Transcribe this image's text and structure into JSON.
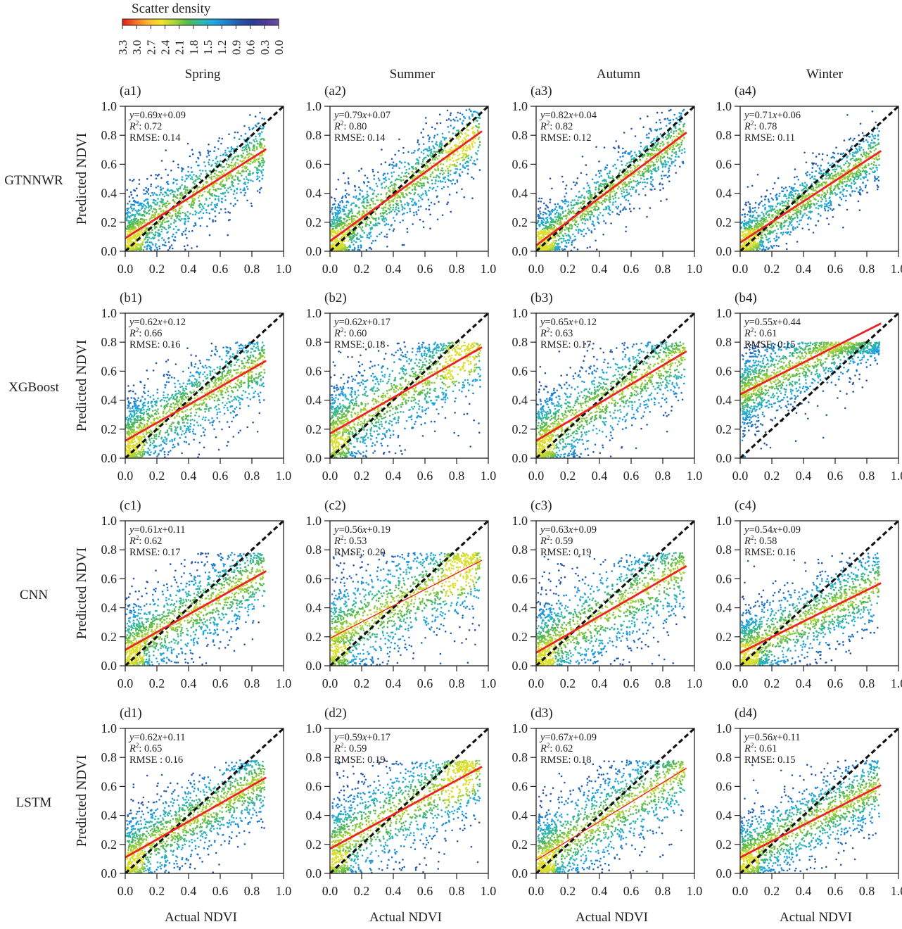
{
  "colorbar": {
    "title": "Scatter density",
    "colors": [
      "#e31a1c",
      "#f46d2a",
      "#fdbb2d",
      "#f2e32b",
      "#a8d43a",
      "#55b848",
      "#2fb7a5",
      "#21a6e0",
      "#1d7fcc",
      "#2456a8",
      "#2a3c94",
      "#4b3a96",
      "#6a4fa5"
    ],
    "tick_labels": [
      "3.3",
      "3.0",
      "2.7",
      "2.4",
      "2.1",
      "1.8",
      "1.5",
      "1.2",
      "0.9",
      "0.6",
      "0.3",
      "0.0"
    ]
  },
  "columns": [
    "Spring",
    "Summer",
    "Autumn",
    "Winter"
  ],
  "rows": [
    "GTNNWR",
    "XGBoost",
    "CNN",
    "LSTM"
  ],
  "colors": {
    "fit_line": "#e8232a",
    "identity_line": "#111111",
    "axis": "#231f20"
  },
  "chart_data": {
    "type": "scatter",
    "title": "",
    "xlabel": "Actual NDVI",
    "ylabel": "Predicted NDVI",
    "xlim": [
      0.0,
      1.0
    ],
    "ylim": [
      0.0,
      1.0
    ],
    "x_ticks": [
      "0.0",
      "0.2",
      "0.4",
      "0.6",
      "0.8",
      "1.0"
    ],
    "y_ticks": [
      "0.0",
      "0.2",
      "0.4",
      "0.6",
      "0.8",
      "1.0"
    ],
    "grid": false,
    "legend": "colorbar top-left (scatter density)",
    "panels": [
      {
        "id": "(a1)",
        "model": "GTNNWR",
        "season": "Spring",
        "equation": "y=0.69x+0.09",
        "slope": 0.69,
        "intercept": 0.09,
        "r2_label": ": 0.72",
        "r2": 0.72,
        "rmse_label": "RMSE: 0.14",
        "rmse": 0.14,
        "x_max": 0.88
      },
      {
        "id": "(a2)",
        "model": "GTNNWR",
        "season": "Summer",
        "equation": "y=0.79x+0.07",
        "slope": 0.79,
        "intercept": 0.07,
        "r2_label": ": 0.80",
        "r2": 0.8,
        "rmse_label": "RMSE: 0.14",
        "rmse": 0.14,
        "x_max": 0.95
      },
      {
        "id": "(a3)",
        "model": "GTNNWR",
        "season": "Autumn",
        "equation": "y=0.82x+0.04",
        "slope": 0.82,
        "intercept": 0.04,
        "r2_label": ": 0.82",
        "r2": 0.82,
        "rmse_label": "RMSE: 0.12",
        "rmse": 0.12,
        "x_max": 0.94
      },
      {
        "id": "(a4)",
        "model": "GTNNWR",
        "season": "Winter",
        "equation": "y=0.71x+0.06",
        "slope": 0.71,
        "intercept": 0.06,
        "r2_label": ": 0.78",
        "r2": 0.78,
        "rmse_label": "RMSE: 0.11",
        "rmse": 0.11,
        "x_max": 0.88
      },
      {
        "id": "(b1)",
        "model": "XGBoost",
        "season": "Spring",
        "equation": "y=0.62x+0.12",
        "slope": 0.62,
        "intercept": 0.12,
        "r2_label": ": 0.66",
        "r2": 0.66,
        "rmse_label": "RMSE: 0.16",
        "rmse": 0.16,
        "x_max": 0.88
      },
      {
        "id": "(b2)",
        "model": "XGBoost",
        "season": "Summer",
        "equation": "y=0.62x+0.17",
        "slope": 0.62,
        "intercept": 0.17,
        "r2_label": ": 0.60",
        "r2": 0.6,
        "rmse_label": "RMSE: 0.18",
        "rmse": 0.18,
        "x_max": 0.95
      },
      {
        "id": "(b3)",
        "model": "XGBoost",
        "season": "Autumn",
        "equation": "y=0.65x+0.12",
        "slope": 0.65,
        "intercept": 0.12,
        "r2_label": ": 0.63",
        "r2": 0.63,
        "rmse_label": "RMSE: 0.17",
        "rmse": 0.17,
        "x_max": 0.94
      },
      {
        "id": "(b4)",
        "model": "XGBoost",
        "season": "Winter",
        "equation": "y=0.55x+0.44",
        "slope": 0.55,
        "intercept": 0.44,
        "r2_label": ": 0.61",
        "r2": 0.61,
        "rmse_label": "RMSE: 0.15",
        "rmse": 0.15,
        "x_max": 0.88
      },
      {
        "id": "(c1)",
        "model": "CNN",
        "season": "Spring",
        "equation": "y=0.61x+0.11",
        "slope": 0.61,
        "intercept": 0.11,
        "r2_label": ": 0.62",
        "r2": 0.62,
        "rmse_label": "RMSE: 0.17",
        "rmse": 0.17,
        "x_max": 0.88
      },
      {
        "id": "(c2)",
        "model": "CNN",
        "season": "Summer",
        "equation": "y=0.56x+0.19",
        "slope": 0.56,
        "intercept": 0.19,
        "r2_label": ": 0.53",
        "r2": 0.53,
        "rmse_label": "RMSE: 0.20",
        "rmse": 0.2,
        "x_max": 0.95
      },
      {
        "id": "(c3)",
        "model": "CNN",
        "season": "Autumn",
        "equation": "y=0.63x+0.09",
        "slope": 0.63,
        "intercept": 0.09,
        "r2_label": ": 0.59",
        "r2": 0.59,
        "rmse_label": "RMSE: 0.19",
        "rmse": 0.19,
        "x_max": 0.94
      },
      {
        "id": "(c4)",
        "model": "CNN",
        "season": "Winter",
        "equation": "y=0.54x+0.09",
        "slope": 0.54,
        "intercept": 0.09,
        "r2_label": ": 0.58",
        "r2": 0.58,
        "rmse_label": "RMSE: 0.16",
        "rmse": 0.16,
        "x_max": 0.88
      },
      {
        "id": "(d1)",
        "model": "LSTM",
        "season": "Spring",
        "equation": "y=0.62x+0.11",
        "slope": 0.62,
        "intercept": 0.11,
        "r2_label": ": 0.65",
        "r2": 0.65,
        "rmse_label": "RMSE : 0.16",
        "rmse": 0.16,
        "x_max": 0.88
      },
      {
        "id": "(d2)",
        "model": "LSTM",
        "season": "Summer",
        "equation": "y=0.59x+0.17",
        "slope": 0.59,
        "intercept": 0.17,
        "r2_label": ": 0.59",
        "r2": 0.59,
        "rmse_label": "RMSE: 0.19",
        "rmse": 0.19,
        "x_max": 0.95
      },
      {
        "id": "(d3)",
        "model": "LSTM",
        "season": "Autumn",
        "equation": "y=0.67x+0.09",
        "slope": 0.67,
        "intercept": 0.09,
        "r2_label": ": 0.62",
        "r2": 0.62,
        "rmse_label": "RMSE: 0.18",
        "rmse": 0.18,
        "x_max": 0.94
      },
      {
        "id": "(d4)",
        "model": "LSTM",
        "season": "Winter",
        "equation": "y=0.56x+0.11",
        "slope": 0.56,
        "intercept": 0.11,
        "r2_label": ": 0.61",
        "r2": 0.61,
        "rmse_label": "RMSE: 0.15",
        "rmse": 0.15,
        "x_max": 0.88
      }
    ]
  }
}
